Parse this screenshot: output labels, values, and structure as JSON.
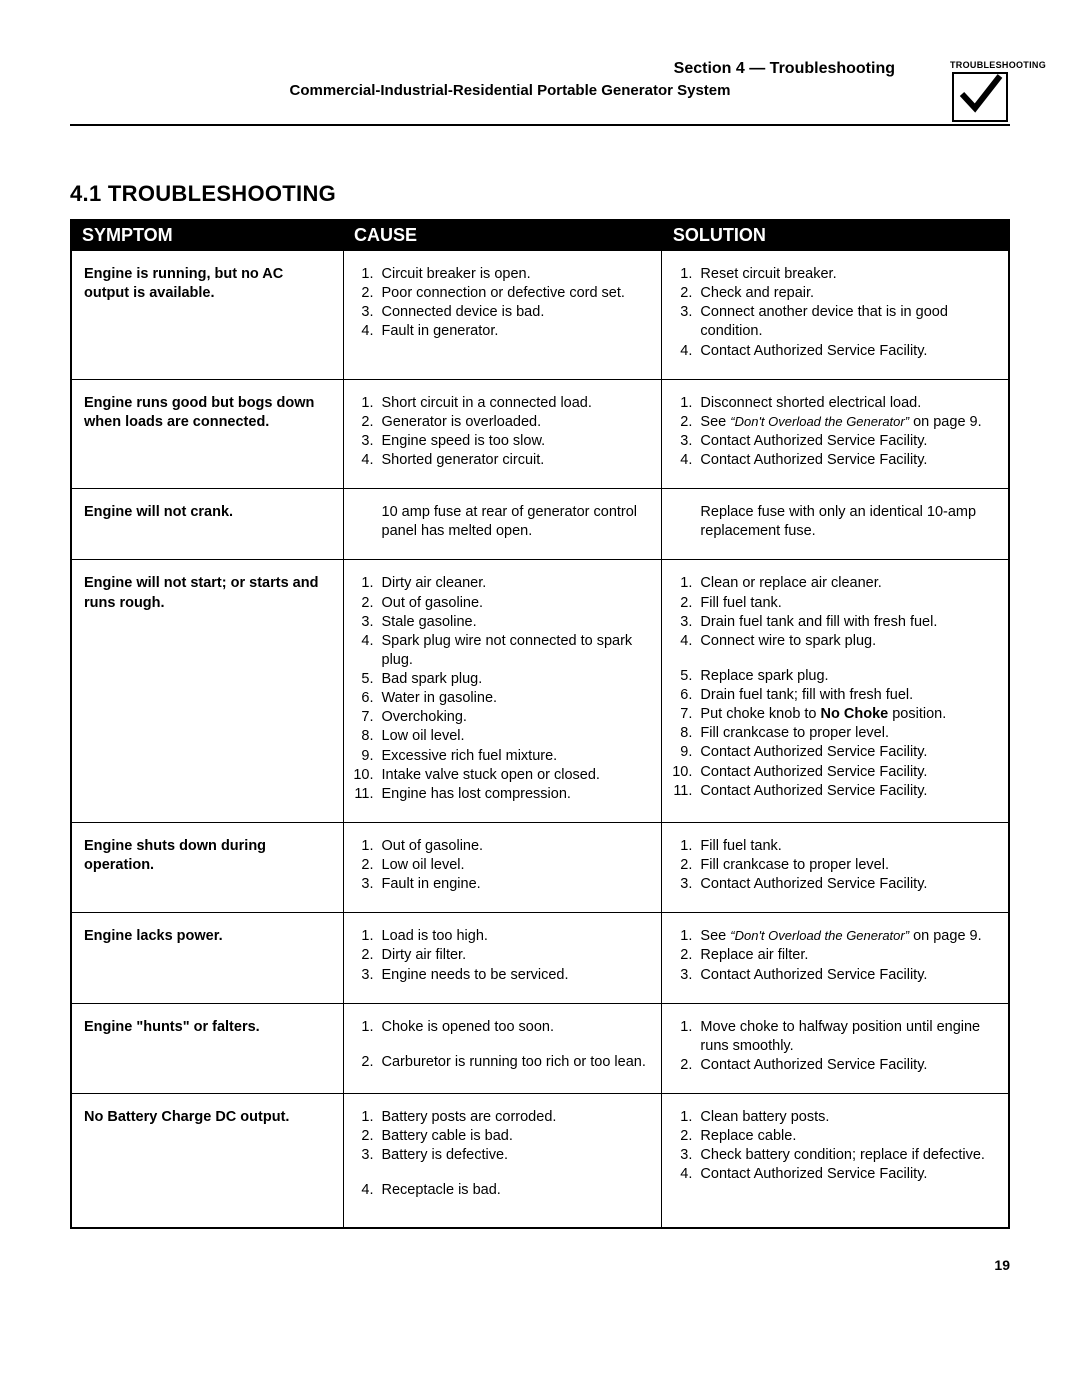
{
  "header": {
    "section_line": "Section 4 — Troubleshooting",
    "subtitle": "Commercial-Industrial-Residential Portable Generator System",
    "icon_label": "TROUBLESHOOTING"
  },
  "title": "4.1 TROUBLESHOOTING",
  "columns": {
    "symptom": "SYMPTOM",
    "cause": "CAUSE",
    "solution": "SOLUTION"
  },
  "rows": [
    {
      "symptom": "Engine is running, but no AC output is available.",
      "causes": [
        "Circuit breaker is open.",
        "Poor connection or defective cord set.",
        "Connected device is bad.",
        "Fault in generator."
      ],
      "solutions": [
        "Reset circuit breaker.",
        "Check and repair.",
        "Connect another device that is in good condition.",
        "Contact Authorized Service Facility."
      ]
    },
    {
      "symptom": "Engine runs good but bogs down when loads are connected.",
      "causes": [
        "Short circuit in a connected load.",
        "Generator is overloaded.",
        "Engine speed is too slow.",
        "Shorted generator circuit."
      ],
      "solutions_html": [
        "Disconnect shorted electrical load.",
        "See <span class=\"ital-ref\">“Don't Overload the Generator”</span> on page 9.",
        "Contact Authorized Service Facility.",
        "Contact Authorized Service Facility."
      ]
    },
    {
      "symptom": "Engine will not crank.",
      "cause_plain": "10 amp fuse at rear of generator control panel has melted open.",
      "solution_plain": "Replace fuse with only an identical 10-amp replacement fuse."
    },
    {
      "symptom": "Engine will not start; or starts and runs rough.",
      "causes": [
        "Dirty air cleaner.",
        "Out of gasoline.",
        "Stale gasoline.",
        "Spark plug wire not connected to spark plug.",
        "Bad spark plug.",
        "Water in gasoline.",
        "Overchoking.",
        "Low oil level.",
        "Excessive rich fuel mixture.",
        "Intake valve stuck open or closed.",
        "Engine has lost compression."
      ],
      "solutions_html": [
        "Clean or replace air cleaner.",
        "Fill fuel tank.",
        "Drain fuel tank and fill with fresh fuel.",
        "Connect wire to spark plug.",
        "Replace spark plug.",
        "Drain fuel tank; fill with fresh fuel.",
        "Put choke knob to <span class=\"nb\">No Choke</span> position.",
        "Fill crankcase to proper level.",
        "Contact Authorized Service Facility.",
        "Contact Authorized Service Facility.",
        "Contact Authorized Service Facility."
      ],
      "sol_gap_after": 3
    },
    {
      "symptom": "Engine shuts down during operation.",
      "causes": [
        "Out of gasoline.",
        "Low oil level.",
        "Fault in engine."
      ],
      "solutions": [
        "Fill fuel tank.",
        "Fill crankcase to proper level.",
        "Contact Authorized Service Facility."
      ]
    },
    {
      "symptom": "Engine lacks power.",
      "causes": [
        "Load is too high.",
        "Dirty air filter.",
        "Engine needs to be serviced."
      ],
      "solutions_html": [
        "See <span class=\"ital-ref\">“Don't Overload the Generator”</span> on page 9.",
        "Replace air filter.",
        "Contact Authorized Service Facility."
      ]
    },
    {
      "symptom": "Engine \"hunts\" or falters.",
      "causes": [
        "Choke is opened too soon.",
        "Carburetor is running too rich or too lean."
      ],
      "solutions": [
        "Move choke to halfway position until engine runs smoothly.",
        "Contact Authorized Service Facility."
      ],
      "cause_gap_after": 0
    },
    {
      "symptom": "No Battery Charge DC output.",
      "causes": [
        "Battery posts are corroded.",
        "Battery cable is bad.",
        "Battery is defective.",
        "Receptacle is bad."
      ],
      "solutions": [
        "Clean battery posts.",
        "Replace cable.",
        "Check battery condition; replace if defective.",
        "Contact Authorized Service Facility."
      ],
      "cause_gap_after": 2,
      "extra_bottom": true
    }
  ],
  "page_number": "19"
}
